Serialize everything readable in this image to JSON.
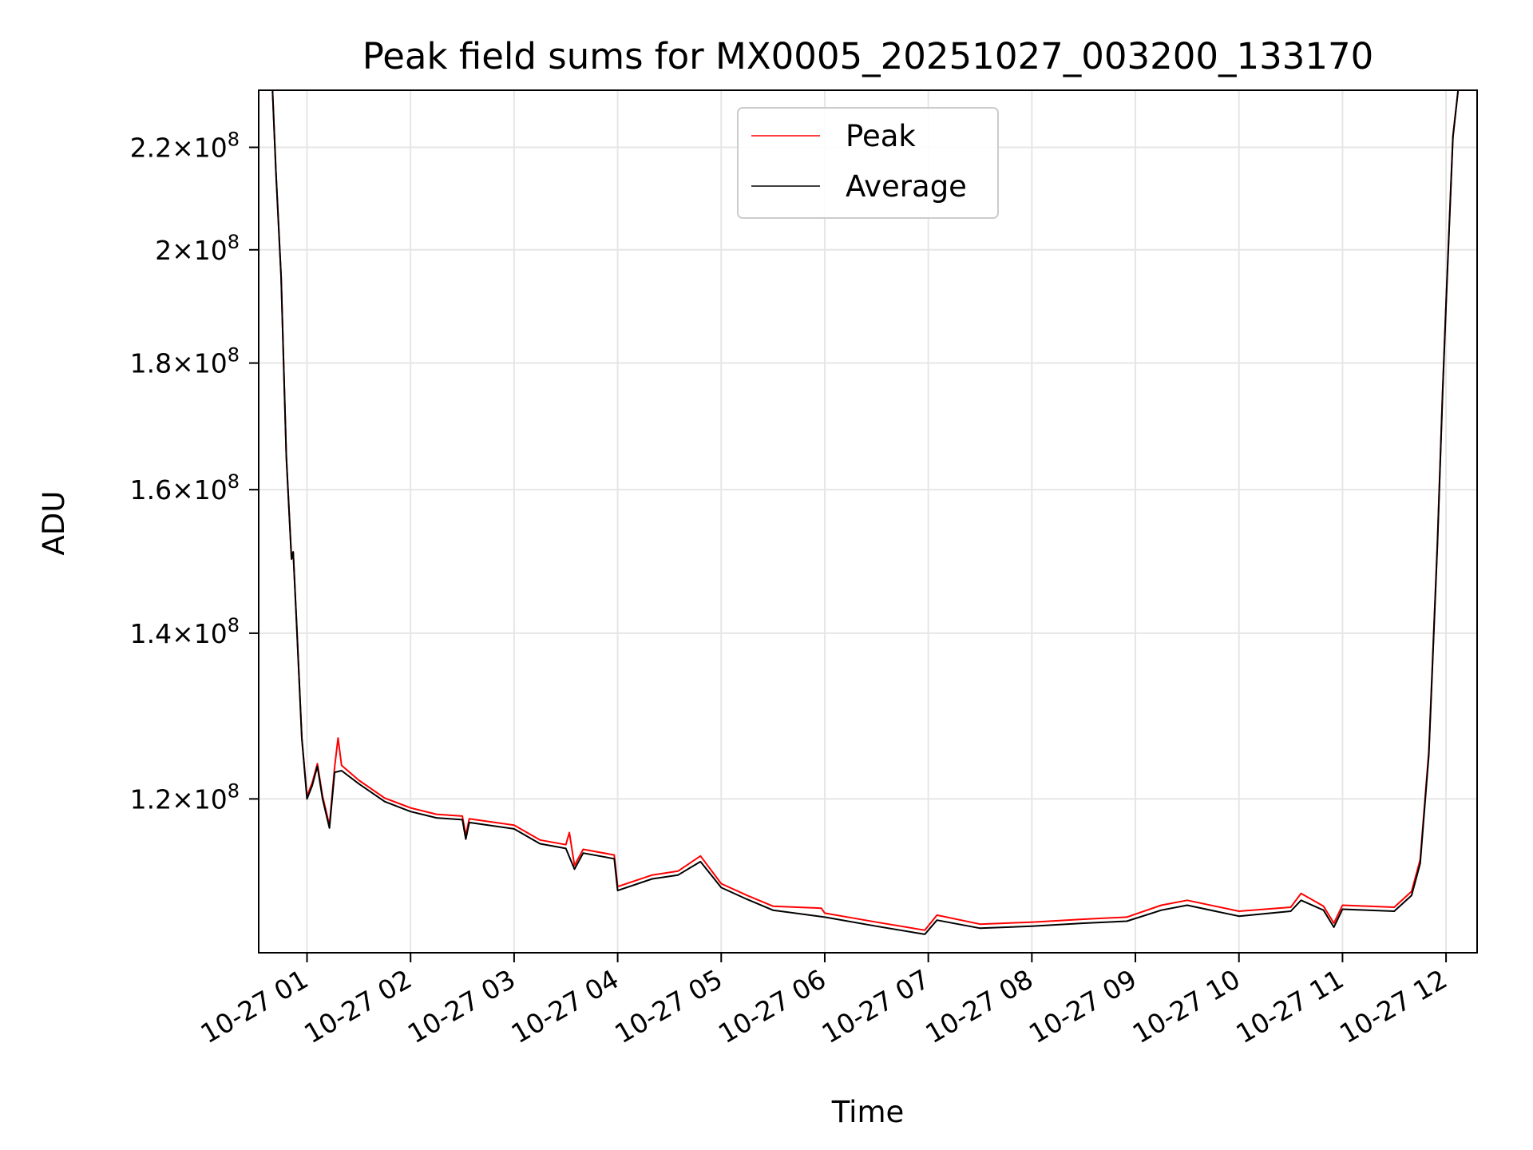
{
  "chart_data": {
    "type": "line",
    "title": "Peak field sums for MX0005_20251027_003200_133170",
    "xlabel": "Time",
    "ylabel": "ADU",
    "y_scale": "log",
    "grid": true,
    "legend_position": "top-center",
    "x_range": [
      "2025-10-27 00:32",
      "2025-10-27 12:18"
    ],
    "ylim": [
      104000000,
      232000000
    ],
    "x_ticks": [
      {
        "value": "2025-10-27 01:00",
        "label": "10-27 01"
      },
      {
        "value": "2025-10-27 02:00",
        "label": "10-27 02"
      },
      {
        "value": "2025-10-27 03:00",
        "label": "10-27 03"
      },
      {
        "value": "2025-10-27 04:00",
        "label": "10-27 04"
      },
      {
        "value": "2025-10-27 05:00",
        "label": "10-27 05"
      },
      {
        "value": "2025-10-27 06:00",
        "label": "10-27 06"
      },
      {
        "value": "2025-10-27 07:00",
        "label": "10-27 07"
      },
      {
        "value": "2025-10-27 08:00",
        "label": "10-27 08"
      },
      {
        "value": "2025-10-27 09:00",
        "label": "10-27 09"
      },
      {
        "value": "2025-10-27 10:00",
        "label": "10-27 10"
      },
      {
        "value": "2025-10-27 11:00",
        "label": "10-27 11"
      },
      {
        "value": "2025-10-27 12:00",
        "label": "10-27 12"
      }
    ],
    "y_ticks": [
      {
        "value": 120000000,
        "mantissa": "1.2",
        "exp": "8"
      },
      {
        "value": 140000000,
        "mantissa": "1.4",
        "exp": "8"
      },
      {
        "value": 160000000,
        "mantissa": "1.6",
        "exp": "8"
      },
      {
        "value": 180000000,
        "mantissa": "1.8",
        "exp": "8"
      },
      {
        "value": 200000000,
        "mantissa": "2",
        "exp": "8"
      },
      {
        "value": 220000000,
        "mantissa": "2.2",
        "exp": "8"
      }
    ],
    "series": [
      {
        "name": "Average",
        "color": "#000000",
        "points": [
          [
            "2025-10-27 00:32",
            232000000
          ],
          [
            "2025-10-27 00:40",
            232000000
          ],
          [
            "2025-10-27 00:42",
            215000000
          ],
          [
            "2025-10-27 00:45",
            195000000
          ],
          [
            "2025-10-27 00:48",
            165000000
          ],
          [
            "2025-10-27 00:51",
            150000000
          ],
          [
            "2025-10-27 00:52",
            151000000
          ],
          [
            "2025-10-27 00:54",
            141000000
          ],
          [
            "2025-10-27 00:57",
            127000000
          ],
          [
            "2025-10-27 01:00",
            120000000
          ],
          [
            "2025-10-27 01:03",
            121500000
          ],
          [
            "2025-10-27 01:06",
            123700000
          ],
          [
            "2025-10-27 01:09",
            120000000
          ],
          [
            "2025-10-27 01:13",
            116800000
          ],
          [
            "2025-10-27 01:16",
            123000000
          ],
          [
            "2025-10-27 01:20",
            123200000
          ],
          [
            "2025-10-27 01:30",
            121700000
          ],
          [
            "2025-10-27 01:45",
            119700000
          ],
          [
            "2025-10-27 02:00",
            118600000
          ],
          [
            "2025-10-27 02:15",
            117900000
          ],
          [
            "2025-10-27 02:30",
            117700000
          ],
          [
            "2025-10-27 02:32",
            115600000
          ],
          [
            "2025-10-27 02:34",
            117400000
          ],
          [
            "2025-10-27 03:00",
            116700000
          ],
          [
            "2025-10-27 03:15",
            115100000
          ],
          [
            "2025-10-27 03:30",
            114600000
          ],
          [
            "2025-10-27 03:35",
            112400000
          ],
          [
            "2025-10-27 03:40",
            114100000
          ],
          [
            "2025-10-27 03:58",
            113500000
          ],
          [
            "2025-10-27 04:00",
            110200000
          ],
          [
            "2025-10-27 04:20",
            111400000
          ],
          [
            "2025-10-27 04:35",
            111800000
          ],
          [
            "2025-10-27 04:48",
            113200000
          ],
          [
            "2025-10-27 05:00",
            110500000
          ],
          [
            "2025-10-27 05:15",
            109300000
          ],
          [
            "2025-10-27 05:30",
            108200000
          ],
          [
            "2025-10-27 06:00",
            107500000
          ],
          [
            "2025-10-27 06:30",
            106600000
          ],
          [
            "2025-10-27 06:58",
            105800000
          ],
          [
            "2025-10-27 07:05",
            107200000
          ],
          [
            "2025-10-27 07:30",
            106400000
          ],
          [
            "2025-10-27 08:00",
            106600000
          ],
          [
            "2025-10-27 08:30",
            106900000
          ],
          [
            "2025-10-27 08:55",
            107100000
          ],
          [
            "2025-10-27 09:15",
            108200000
          ],
          [
            "2025-10-27 09:30",
            108700000
          ],
          [
            "2025-10-27 10:00",
            107600000
          ],
          [
            "2025-10-27 10:30",
            108100000
          ],
          [
            "2025-10-27 10:36",
            109200000
          ],
          [
            "2025-10-27 10:49",
            108200000
          ],
          [
            "2025-10-27 10:55",
            106500000
          ],
          [
            "2025-10-27 11:00",
            108300000
          ],
          [
            "2025-10-27 11:30",
            108100000
          ],
          [
            "2025-10-27 11:40",
            109700000
          ],
          [
            "2025-10-27 11:45",
            113000000
          ],
          [
            "2025-10-27 11:50",
            125000000
          ],
          [
            "2025-10-27 11:55",
            152000000
          ],
          [
            "2025-10-27 11:58",
            175000000
          ],
          [
            "2025-10-27 12:00",
            190000000
          ],
          [
            "2025-10-27 12:04",
            222000000
          ],
          [
            "2025-10-27 12:07",
            232000000
          ]
        ]
      },
      {
        "name": "Peak",
        "color": "#ff0000",
        "points": [
          [
            "2025-10-27 00:32",
            232000000
          ],
          [
            "2025-10-27 00:40",
            232000000
          ],
          [
            "2025-10-27 00:42",
            215000000
          ],
          [
            "2025-10-27 00:45",
            195000000
          ],
          [
            "2025-10-27 00:48",
            165000000
          ],
          [
            "2025-10-27 00:51",
            150000000
          ],
          [
            "2025-10-27 00:52",
            151000000
          ],
          [
            "2025-10-27 00:54",
            141000000
          ],
          [
            "2025-10-27 00:57",
            127000000
          ],
          [
            "2025-10-27 01:00",
            120300000
          ],
          [
            "2025-10-27 01:03",
            121800000
          ],
          [
            "2025-10-27 01:06",
            124000000
          ],
          [
            "2025-10-27 01:09",
            120300000
          ],
          [
            "2025-10-27 01:13",
            117100000
          ],
          [
            "2025-10-27 01:16",
            123600000
          ],
          [
            "2025-10-27 01:18",
            127000000
          ],
          [
            "2025-10-27 01:20",
            123800000
          ],
          [
            "2025-10-27 01:30",
            122100000
          ],
          [
            "2025-10-27 01:45",
            120100000
          ],
          [
            "2025-10-27 02:00",
            119000000
          ],
          [
            "2025-10-27 02:15",
            118300000
          ],
          [
            "2025-10-27 02:30",
            118100000
          ],
          [
            "2025-10-27 02:32",
            116000000
          ],
          [
            "2025-10-27 02:34",
            117800000
          ],
          [
            "2025-10-27 03:00",
            117100000
          ],
          [
            "2025-10-27 03:15",
            115500000
          ],
          [
            "2025-10-27 03:30",
            115000000
          ],
          [
            "2025-10-27 03:32",
            116300000
          ],
          [
            "2025-10-27 03:35",
            112800000
          ],
          [
            "2025-10-27 03:40",
            114500000
          ],
          [
            "2025-10-27 03:58",
            113900000
          ],
          [
            "2025-10-27 04:00",
            110600000
          ],
          [
            "2025-10-27 04:20",
            111800000
          ],
          [
            "2025-10-27 04:35",
            112200000
          ],
          [
            "2025-10-27 04:48",
            113800000
          ],
          [
            "2025-10-27 05:00",
            110900000
          ],
          [
            "2025-10-27 05:15",
            109700000
          ],
          [
            "2025-10-27 05:30",
            108600000
          ],
          [
            "2025-10-27 05:58",
            108400000
          ],
          [
            "2025-10-27 06:00",
            107900000
          ],
          [
            "2025-10-27 06:30",
            107000000
          ],
          [
            "2025-10-27 06:58",
            106200000
          ],
          [
            "2025-10-27 07:05",
            107700000
          ],
          [
            "2025-10-27 07:30",
            106800000
          ],
          [
            "2025-10-27 08:00",
            107000000
          ],
          [
            "2025-10-27 08:30",
            107300000
          ],
          [
            "2025-10-27 08:55",
            107500000
          ],
          [
            "2025-10-27 09:15",
            108700000
          ],
          [
            "2025-10-27 09:30",
            109200000
          ],
          [
            "2025-10-27 10:00",
            108100000
          ],
          [
            "2025-10-27 10:30",
            108500000
          ],
          [
            "2025-10-27 10:36",
            109900000
          ],
          [
            "2025-10-27 10:49",
            108600000
          ],
          [
            "2025-10-27 10:55",
            106900000
          ],
          [
            "2025-10-27 11:00",
            108700000
          ],
          [
            "2025-10-27 11:30",
            108500000
          ],
          [
            "2025-10-27 11:40",
            110100000
          ],
          [
            "2025-10-27 11:45",
            113400000
          ],
          [
            "2025-10-27 11:50",
            125400000
          ],
          [
            "2025-10-27 11:55",
            152400000
          ],
          [
            "2025-10-27 11:58",
            175400000
          ],
          [
            "2025-10-27 12:00",
            190400000
          ],
          [
            "2025-10-27 12:04",
            222400000
          ],
          [
            "2025-10-27 12:07",
            232000000
          ]
        ]
      }
    ],
    "legend": [
      {
        "name": "Peak",
        "color": "#ff0000"
      },
      {
        "name": "Average",
        "color": "#000000"
      }
    ]
  }
}
